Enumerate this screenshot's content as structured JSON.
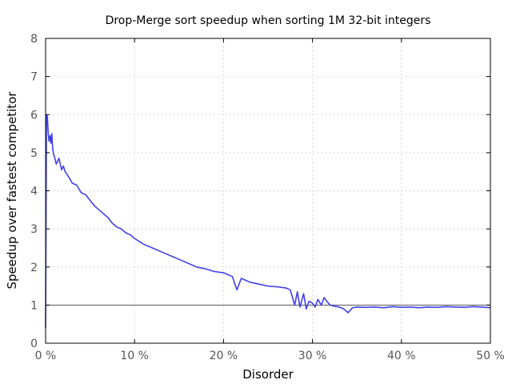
{
  "chart_data": {
    "type": "line",
    "title": "Drop-Merge sort speedup when sorting 1M 32-bit integers",
    "xlabel": "Disorder",
    "ylabel": "Speedup over fastest competitor",
    "xlim": [
      0,
      50
    ],
    "ylim": [
      0,
      8
    ],
    "grid": true,
    "x_ticks": [
      0,
      10,
      20,
      30,
      40,
      50
    ],
    "x_tick_labels": [
      "0 %",
      "10 %",
      "20 %",
      "30 %",
      "40 %",
      "50 %"
    ],
    "y_ticks": [
      0,
      1,
      2,
      3,
      4,
      5,
      6,
      7,
      8
    ],
    "y_tick_labels": [
      "0",
      "1",
      "2",
      "3",
      "4",
      "5",
      "6",
      "7",
      "8"
    ],
    "reference_line": {
      "y": 1.0,
      "color": "#555555"
    },
    "series": [
      {
        "name": "Drop-Merge sort speedup",
        "color": "#4040e8",
        "x": [
          0,
          0.1,
          0.2,
          0.3,
          0.4,
          0.5,
          0.6,
          0.7,
          0.8,
          0.9,
          1.0,
          1.2,
          1.5,
          1.8,
          2.0,
          2.2,
          2.5,
          3.0,
          3.5,
          4.0,
          4.5,
          5.0,
          5.5,
          6.0,
          6.5,
          7.0,
          7.5,
          8.0,
          8.5,
          9.0,
          9.5,
          10,
          11,
          12,
          13,
          14,
          15,
          16,
          17,
          18,
          19,
          20,
          21,
          21.5,
          22,
          23,
          24,
          25,
          26,
          27,
          27.5,
          28,
          28.3,
          28.6,
          29,
          29.3,
          29.6,
          30,
          30.3,
          30.6,
          31,
          31.3,
          31.6,
          32,
          32.5,
          33,
          33.5,
          34,
          34.5,
          35,
          36,
          37,
          38,
          39,
          40,
          41,
          42,
          43,
          44,
          45,
          46,
          47,
          48,
          49,
          50
        ],
        "y": [
          0.4,
          6.0,
          5.95,
          5.5,
          5.3,
          5.45,
          5.25,
          5.5,
          5.1,
          4.95,
          4.9,
          4.7,
          4.85,
          4.55,
          4.65,
          4.5,
          4.4,
          4.2,
          4.15,
          3.95,
          3.9,
          3.75,
          3.6,
          3.5,
          3.4,
          3.3,
          3.15,
          3.05,
          3.0,
          2.9,
          2.85,
          2.75,
          2.6,
          2.5,
          2.4,
          2.3,
          2.2,
          2.1,
          2.0,
          1.95,
          1.88,
          1.85,
          1.75,
          1.4,
          1.7,
          1.6,
          1.55,
          1.5,
          1.48,
          1.45,
          1.4,
          1.0,
          1.35,
          0.95,
          1.3,
          0.9,
          1.1,
          1.05,
          0.95,
          1.15,
          1.0,
          1.2,
          1.1,
          1.0,
          0.97,
          0.95,
          0.9,
          0.8,
          0.93,
          0.95,
          0.94,
          0.95,
          0.93,
          0.96,
          0.94,
          0.95,
          0.93,
          0.95,
          0.94,
          0.96,
          0.95,
          0.94,
          0.96,
          0.95,
          0.93
        ]
      }
    ]
  }
}
